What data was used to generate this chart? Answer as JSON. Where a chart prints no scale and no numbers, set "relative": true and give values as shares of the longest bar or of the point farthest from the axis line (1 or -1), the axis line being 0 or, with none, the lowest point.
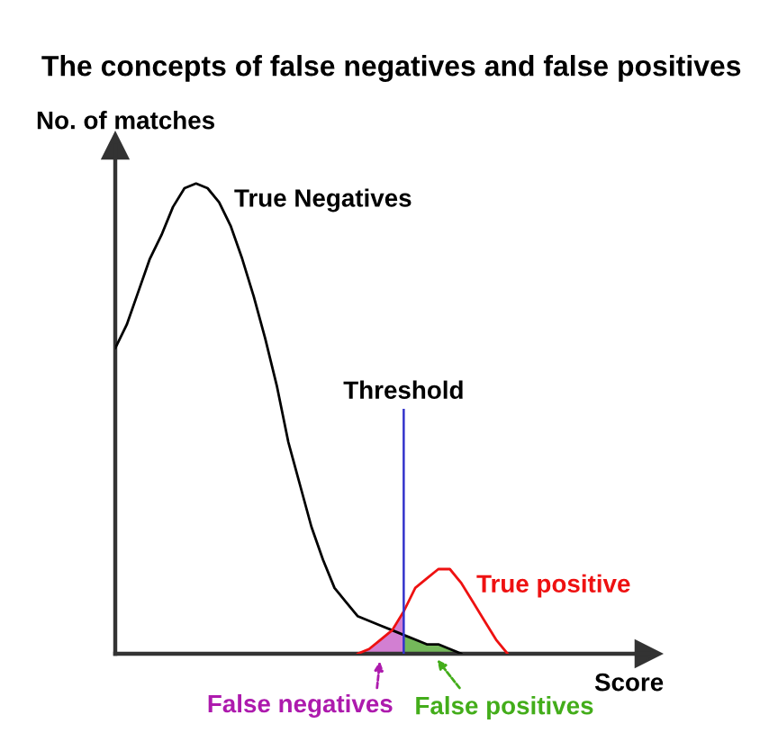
{
  "chart_data": {
    "type": "line",
    "title": "The concepts of false negatives and false positives",
    "xlabel": "Score",
    "ylabel": "No. of matches",
    "relative": true,
    "categories": [
      null,
      null,
      null,
      null,
      null,
      null,
      null,
      null,
      null,
      null,
      null,
      null,
      null,
      null,
      null,
      null,
      null,
      null,
      null,
      null,
      null,
      null,
      null,
      null,
      null,
      null,
      null,
      null,
      null,
      null,
      null,
      null,
      null,
      null,
      null,
      null,
      null,
      null,
      null,
      null,
      null,
      null,
      null,
      null,
      null,
      null,
      null
    ],
    "series": [
      {
        "name": "True Negatives",
        "color": "#000000",
        "values": [
          0.65,
          0.7,
          0.77,
          0.84,
          0.89,
          0.95,
          0.99,
          1.0,
          0.99,
          0.96,
          0.91,
          0.84,
          0.76,
          0.67,
          0.57,
          0.45,
          0.36,
          0.27,
          0.2,
          0.14,
          0.11,
          0.08,
          0.07,
          0.06,
          0.05,
          0.04,
          0.03,
          0.02,
          0.02,
          0.01,
          0.0,
          null,
          null,
          null,
          null,
          null,
          null,
          null,
          null,
          null,
          null,
          null,
          null,
          null,
          null,
          null,
          null
        ]
      },
      {
        "name": "True positive",
        "color": "#ee1111",
        "values": [
          null,
          null,
          null,
          null,
          null,
          null,
          null,
          null,
          null,
          null,
          null,
          null,
          null,
          null,
          null,
          null,
          null,
          null,
          null,
          null,
          null,
          0.0,
          0.01,
          0.03,
          0.05,
          0.09,
          0.14,
          0.16,
          0.18,
          0.18,
          0.15,
          0.11,
          0.07,
          0.03,
          0.0,
          null,
          null,
          null,
          null,
          null,
          null,
          null,
          null,
          null,
          null,
          null,
          null
        ]
      },
      {
        "name": "False negatives",
        "type": "area",
        "color": "#d27fd2",
        "values": [
          null,
          null,
          null,
          null,
          null,
          null,
          null,
          null,
          null,
          null,
          null,
          null,
          null,
          null,
          null,
          null,
          null,
          null,
          null,
          null,
          null,
          0.0,
          0.01,
          0.03,
          0.05,
          0.09,
          null,
          null,
          null,
          null,
          null,
          null,
          null,
          null,
          null,
          null,
          null,
          null,
          null,
          null,
          null,
          null,
          null,
          null,
          null,
          null,
          null
        ]
      },
      {
        "name": "False positives",
        "type": "area",
        "color": "#74b85a",
        "values": [
          null,
          null,
          null,
          null,
          null,
          null,
          null,
          null,
          null,
          null,
          null,
          null,
          null,
          null,
          null,
          null,
          null,
          null,
          null,
          null,
          null,
          null,
          null,
          null,
          null,
          0.04,
          0.03,
          0.02,
          0.02,
          0.01,
          0.0,
          null,
          null,
          null,
          null,
          null,
          null,
          null,
          null,
          null,
          null,
          null,
          null,
          null,
          null,
          null,
          null
        ]
      }
    ],
    "annotations": [
      "Threshold"
    ]
  }
}
